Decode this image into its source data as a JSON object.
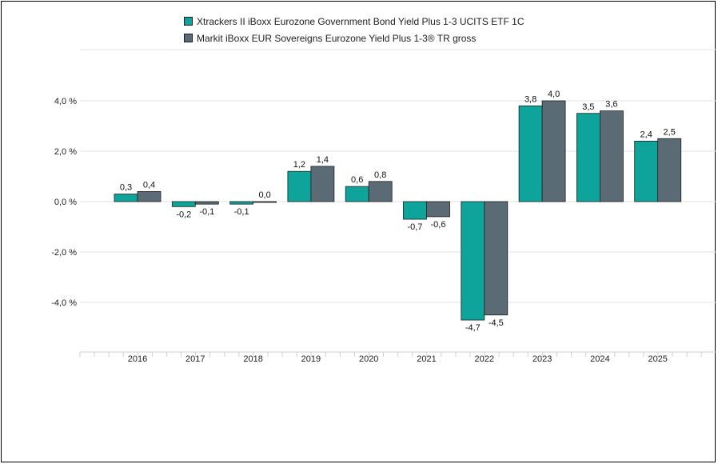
{
  "colors": {
    "series1": "#0ea39b",
    "series2": "#5b6b76",
    "grid": "#e2e2e2",
    "axis": "#cfcfcf"
  },
  "chart_data": {
    "type": "bar",
    "categories": [
      "2016",
      "2017",
      "2018",
      "2019",
      "2020",
      "2021",
      "2022",
      "2023",
      "2024",
      "2025"
    ],
    "series": [
      {
        "name": "Xtrackers II iBoxx Eurozone Government Bond Yield Plus 1-3 UCITS ETF 1C",
        "values": [
          0.3,
          -0.2,
          -0.1,
          1.2,
          0.6,
          -0.7,
          -4.7,
          3.8,
          3.5,
          2.4
        ],
        "labels": [
          "0,3",
          "-0,2",
          "-0,1",
          "1,2",
          "0,6",
          "-0,7",
          "-4,7",
          "3,8",
          "3,5",
          "2,4"
        ]
      },
      {
        "name": "Markit iBoxx EUR Sovereigns Eurozone Yield Plus 1-3® TR gross",
        "values": [
          0.4,
          -0.1,
          0.0,
          1.4,
          0.8,
          -0.6,
          -4.5,
          4.0,
          3.6,
          2.5
        ],
        "labels": [
          "0,4",
          "-0,1",
          "0,0",
          "1,4",
          "0,8",
          "-0,6",
          "-4,5",
          "4,0",
          "3,6",
          "2,5"
        ]
      }
    ],
    "yticks": [
      4,
      2,
      0,
      -2,
      -4
    ],
    "ytick_labels": [
      "4,0 %",
      "2,0 %",
      "0,0 %",
      "-2,0 %",
      "-4,0 %"
    ],
    "ylim": [
      -6.0,
      6.0
    ],
    "grid": true,
    "legend_position": "top-center"
  }
}
